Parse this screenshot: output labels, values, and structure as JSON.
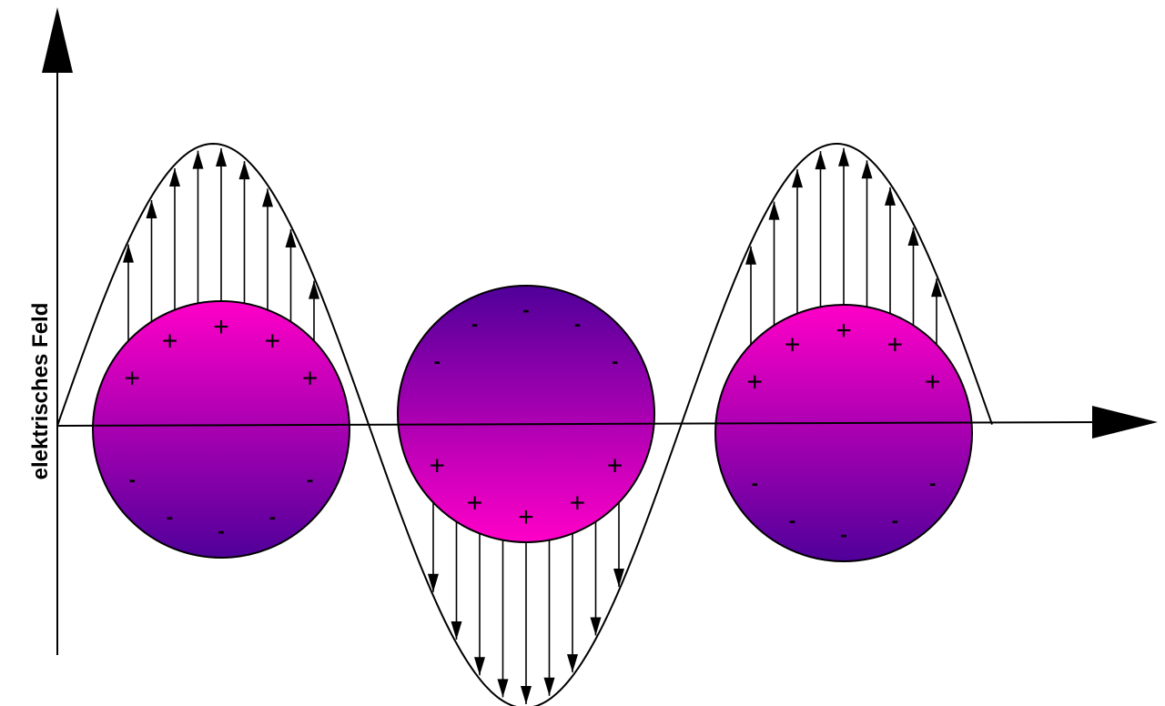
{
  "diagram": {
    "axis_label": "elektrisches Feld",
    "colors": {
      "positive_charge_region": "#ff00c8",
      "negative_charge_region": "#50009a",
      "curve": "#000000",
      "axes": "#000000"
    },
    "charge_symbols": {
      "positive": "+",
      "negative": "-"
    },
    "spheres": [
      {
        "name": "sphere-left",
        "top_charge": "+",
        "bottom_charge": "-",
        "field_direction": "up"
      },
      {
        "name": "sphere-middle",
        "top_charge": "-",
        "bottom_charge": "+",
        "field_direction": "down"
      },
      {
        "name": "sphere-right",
        "top_charge": "+",
        "bottom_charge": "-",
        "field_direction": "up"
      }
    ]
  }
}
